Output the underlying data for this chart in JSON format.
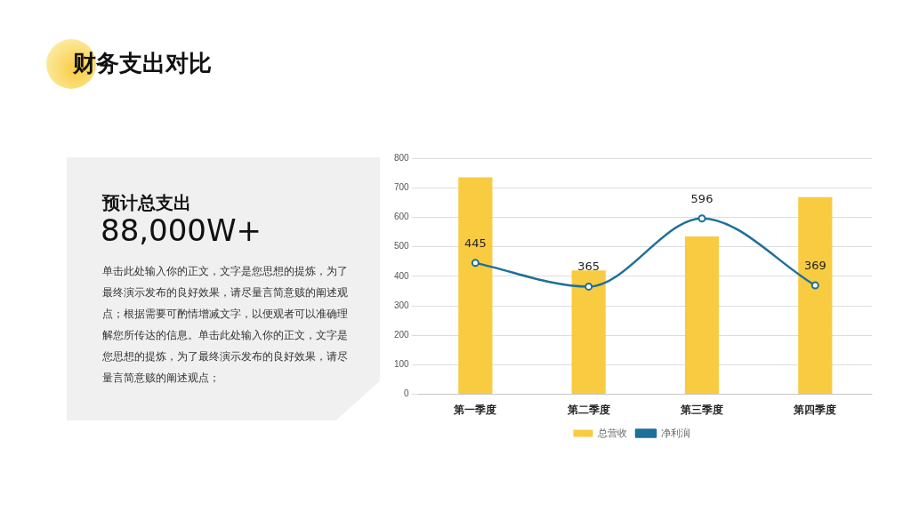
{
  "chart_data": [
    {
      "type": "bar",
      "categories": [
        "第一季度",
        "第二季度",
        "第三季度",
        "第四季度"
      ],
      "series": [
        {
          "name": "总营收",
          "type": "bar",
          "color": "#f9cb40",
          "values": [
            735,
            420,
            535,
            668
          ]
        },
        {
          "name": "净利润",
          "type": "line",
          "color": "#1f6f9b",
          "values": [
            445,
            365,
            596,
            369
          ],
          "value_labels": [
            "445",
            "365",
            "596",
            "369"
          ]
        }
      ],
      "ylim": [
        0,
        800
      ],
      "yticks": [
        0,
        100,
        200,
        300,
        400,
        500,
        600,
        700,
        800
      ],
      "grid": "y",
      "legend": "bottom",
      "marker": "circle",
      "line_style": "solid"
    },
    {
      "type": "other",
      "title": "财务支出对比",
      "subtitle": "预计总支出",
      "annotations": [
        "88,000W+",
        "单击此处输入你的正文，文字是您思想的提炼，为了最终演示发布的良好效果，请尽量言简意赅的阐述观点；根据需要可酌情增减文字，以便观者可以准确理解您所传达的信息。单击此处输入你的正文，文字是您思想的提炼，为了最终演示发布的良好效果，请尽量言简意赅的阐述观点；"
      ]
    }
  ]
}
